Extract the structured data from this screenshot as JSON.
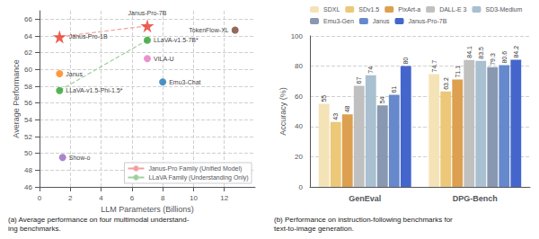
{
  "chart_data": [
    {
      "type": "scatter",
      "xlabel": "LLM Parameters (Billions)",
      "ylabel": "Average Performance",
      "caption": "(a) Average performance on four multimodal understand-\ning benchmarks.",
      "xlim": [
        0,
        14
      ],
      "ylim": [
        46,
        67
      ],
      "xticks": [
        0,
        2,
        4,
        6,
        8,
        10,
        12
      ],
      "yticks": [
        46,
        48,
        50,
        52,
        54,
        56,
        58,
        60,
        62,
        64,
        66
      ],
      "grid": true,
      "legend": "lower right",
      "series": [
        {
          "name": "Janus-Pro Family (Unified Model)",
          "type": "line",
          "line_style": "dashed",
          "color": "#f4a0a0",
          "x": [
            1.3,
            7.0
          ],
          "values": [
            63.9,
            65.2
          ]
        },
        {
          "name": "LLaVA Family (Understanding Only)",
          "type": "line",
          "line_style": "dashed",
          "color": "#a0d0a0",
          "x": [
            1.3,
            7.0
          ],
          "values": [
            57.5,
            63.5
          ]
        }
      ],
      "points": [
        {
          "name": "Janus-Pro-7B",
          "x": 7.0,
          "y": 65.2,
          "color": "#e8392a",
          "marker": "star"
        },
        {
          "name": "Janus-Pro-1B",
          "x": 1.3,
          "y": 63.9,
          "color": "#e8392a",
          "marker": "star"
        },
        {
          "name": "TokenFlow-XL",
          "x": 12.7,
          "y": 64.7,
          "color": "#7b4532",
          "marker": "circle"
        },
        {
          "name": "LLaVA-v1.5-7B*",
          "x": 7.0,
          "y": 63.5,
          "color": "#2ca02c",
          "marker": "circle"
        },
        {
          "name": "VILA-U",
          "x": 7.0,
          "y": 61.3,
          "color": "#e377c2",
          "marker": "circle"
        },
        {
          "name": "Emu3-Chat",
          "x": 8.0,
          "y": 58.5,
          "color": "#1f77b4",
          "marker": "circle"
        },
        {
          "name": "Janus",
          "x": 1.3,
          "y": 59.5,
          "color": "#ff7f0e",
          "marker": "circle"
        },
        {
          "name": "LLaVA-v1.5-Phi-1.5*",
          "x": 1.3,
          "y": 57.5,
          "color": "#2ca02c",
          "marker": "circle"
        },
        {
          "name": "Show-o",
          "x": 1.5,
          "y": 49.5,
          "color": "#9467bd",
          "marker": "circle"
        }
      ]
    },
    {
      "type": "bar",
      "ylabel": "Accuracy (%)",
      "caption": "(b) Performance on instruction-following benchmarks for\ntext-to-image generation.",
      "categories": [
        "GenEval",
        "DPG-Bench"
      ],
      "ylim": [
        0,
        100
      ],
      "yticks": [
        0,
        20,
        40,
        60,
        80,
        100
      ],
      "grid": true,
      "legend": "upper left",
      "data_labels": true,
      "series": [
        {
          "name": "SDXL",
          "color": "#f5e3b8",
          "values": [
            55.0,
            74.7
          ]
        },
        {
          "name": "SDv1.5",
          "color": "#ecc878",
          "values": [
            43.0,
            63.2
          ]
        },
        {
          "name": "PixArt-a",
          "color": "#dca050",
          "values": [
            48.0,
            71.1
          ]
        },
        {
          "name": "DALL-E 3",
          "color": "#c0c0c0",
          "values": [
            67.0,
            84.1
          ]
        },
        {
          "name": "SD3-Medium",
          "color": "#a8c0d0",
          "values": [
            74.0,
            83.5
          ]
        },
        {
          "name": "Emu3-Gen",
          "color": "#8898b0",
          "values": [
            54.0,
            79.3
          ]
        },
        {
          "name": "Janus",
          "color": "#6688cc",
          "values": [
            61.0,
            80.6
          ]
        },
        {
          "name": "Janus-Pro-7B",
          "color": "#4466cc",
          "values": [
            80.0,
            84.2
          ]
        }
      ]
    }
  ]
}
